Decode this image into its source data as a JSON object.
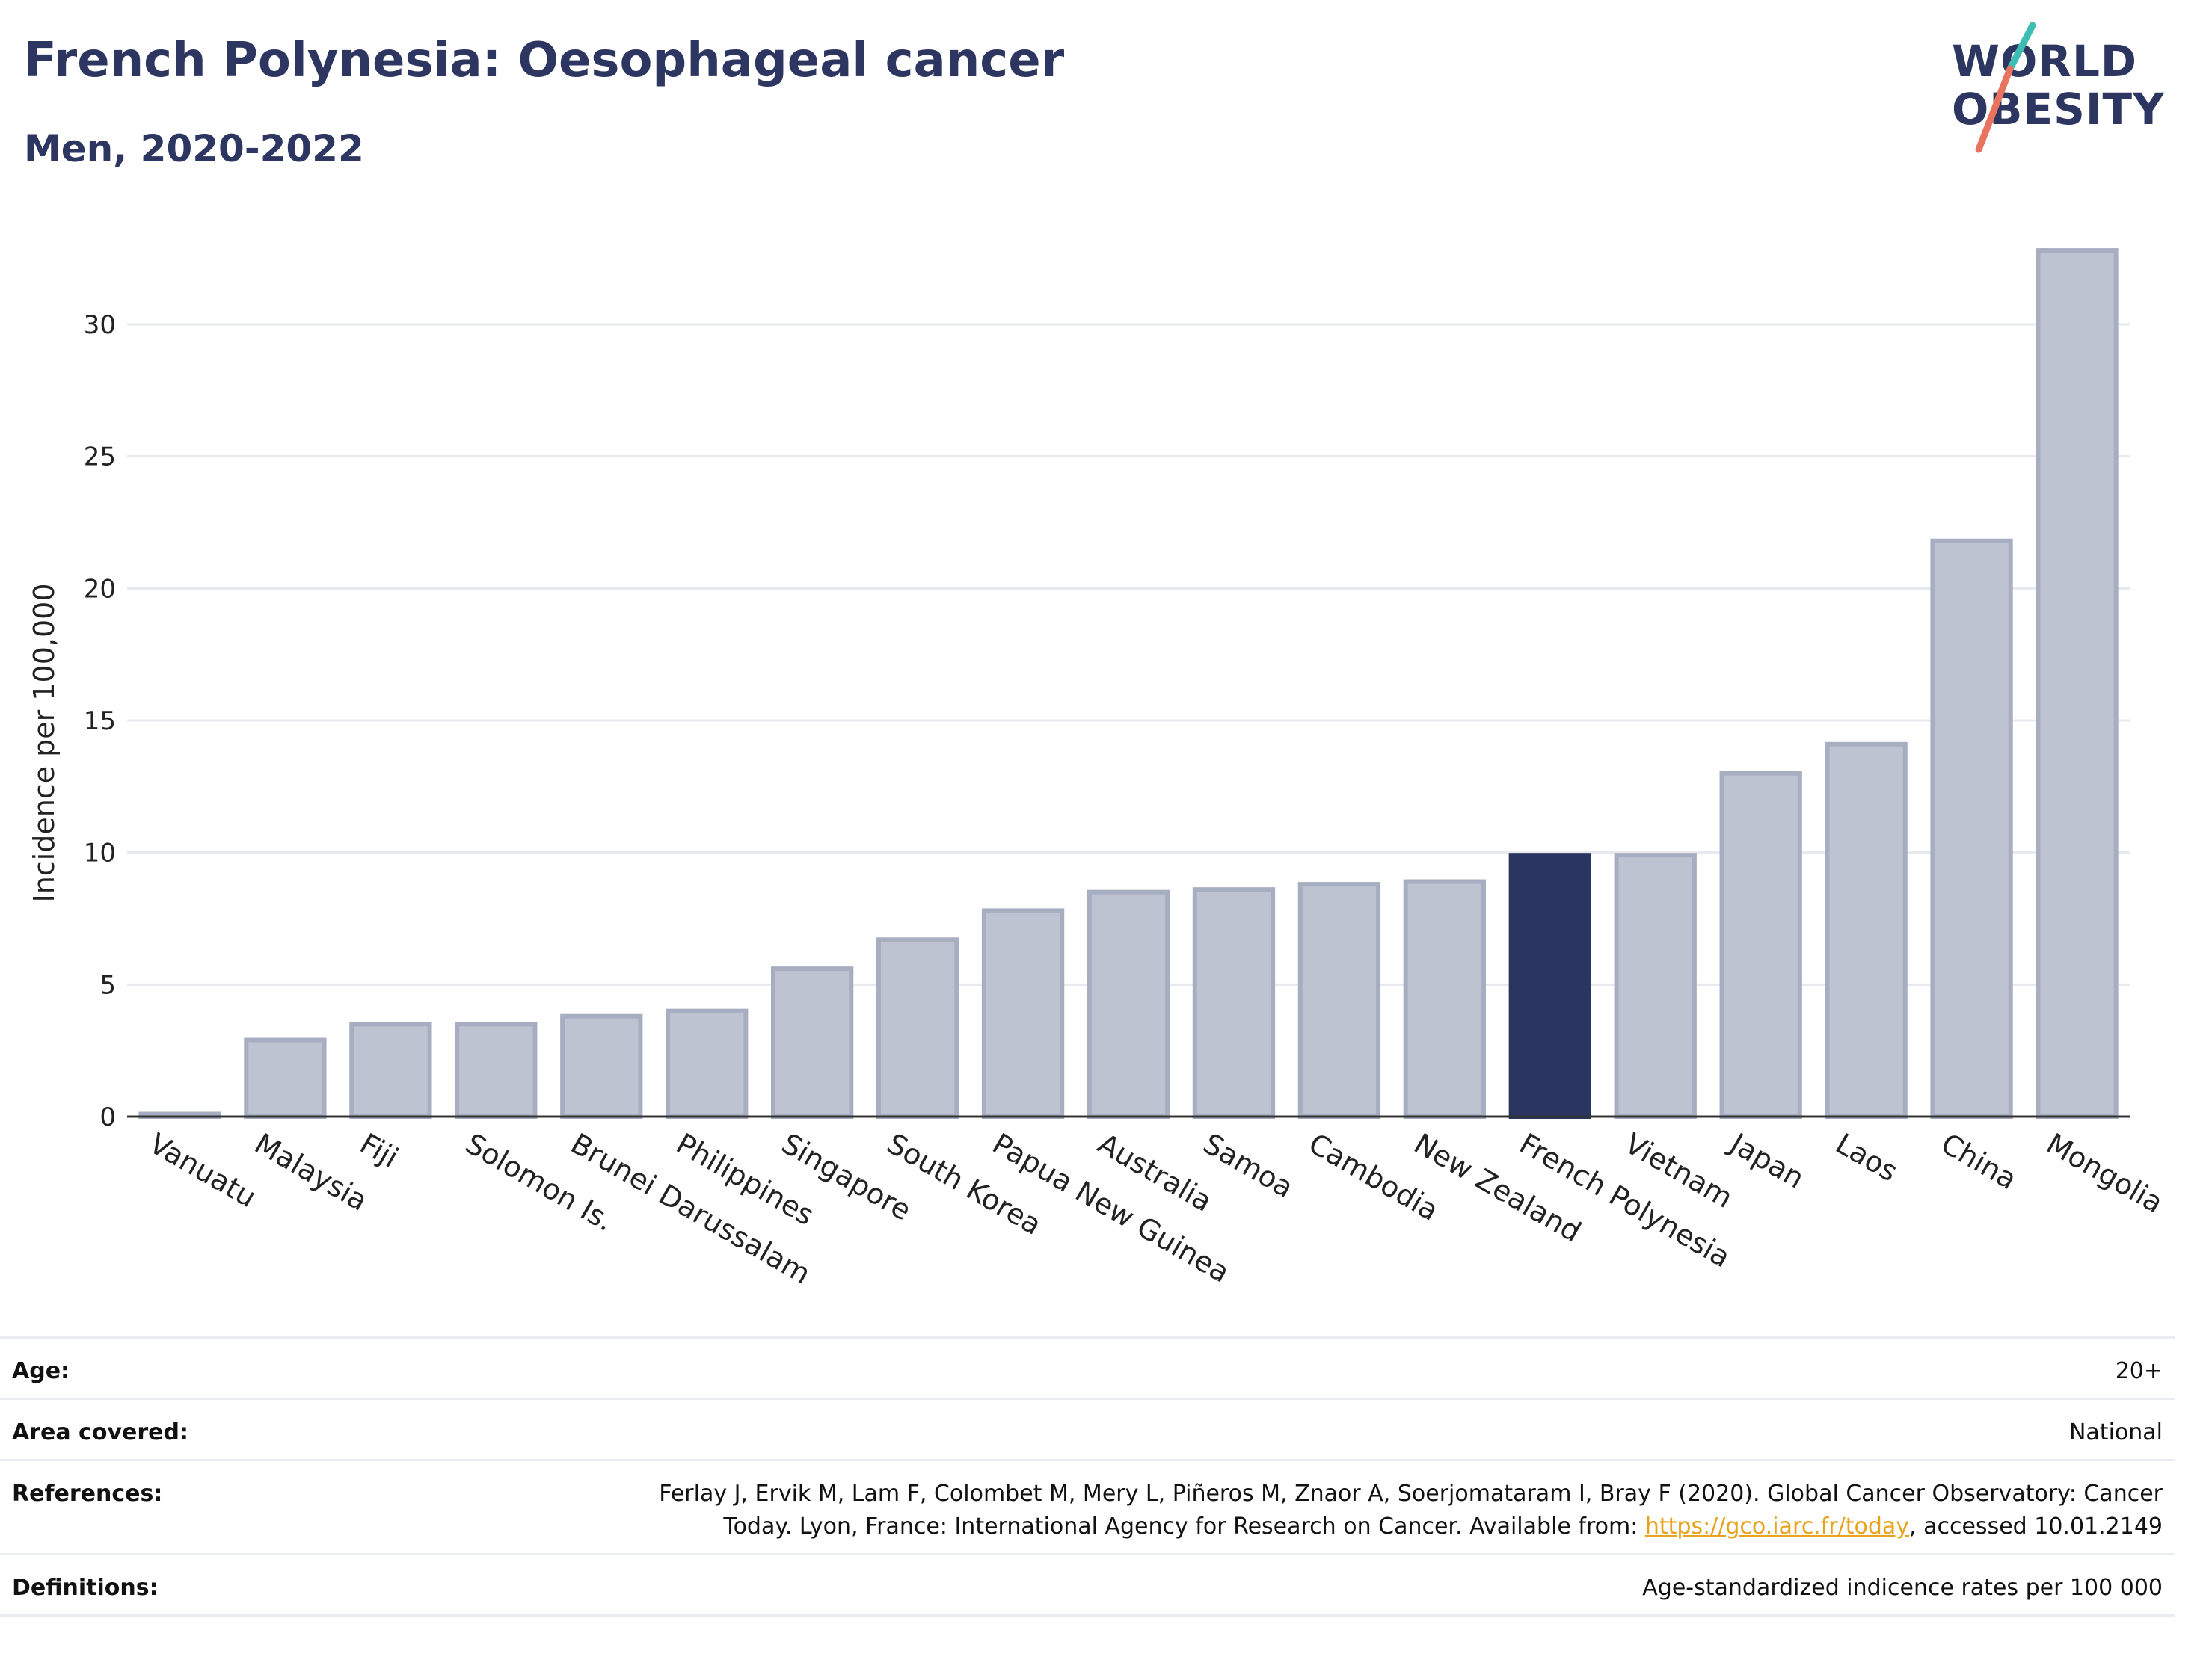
{
  "header": {
    "title": "French Polynesia: Oesophageal cancer",
    "subtitle": "Men, 2020-2022"
  },
  "logo": {
    "line1": "WORLD",
    "line2": "OBESITY",
    "accent_teal": "#3dbdb4",
    "accent_coral": "#e8735f"
  },
  "colors": {
    "bar_default": "#bec3d2",
    "bar_default_border": "#a8aec2",
    "bar_highlight": "#2a3561",
    "title": "#2d3561",
    "link": "#e8a21c"
  },
  "chart_data": {
    "type": "bar",
    "ylabel": "Incidence per 100,000",
    "ylim": [
      0,
      35
    ],
    "yticks": [
      0,
      5,
      10,
      15,
      20,
      25,
      30
    ],
    "grid": true,
    "highlight": "French Polynesia",
    "categories": [
      "Vanuatu",
      "Malaysia",
      "Fiji",
      "Solomon Is.",
      "Brunei Darussalam",
      "Philippines",
      "Singapore",
      "South Korea",
      "Papua New Guinea",
      "Australia",
      "Samoa",
      "Cambodia",
      "New Zealand",
      "French Polynesia",
      "Vietnam",
      "Japan",
      "Laos",
      "China",
      "Mongolia"
    ],
    "values": [
      0.1,
      2.9,
      3.5,
      3.5,
      3.8,
      4.0,
      5.6,
      6.7,
      7.8,
      8.5,
      8.6,
      8.8,
      8.9,
      9.9,
      9.9,
      13.0,
      14.1,
      21.8,
      32.8
    ]
  },
  "meta": {
    "age_label": "Age:",
    "age_value": "20+",
    "area_label": "Area covered:",
    "area_value": "National",
    "references_label": "References:",
    "references_line1": "Ferlay J, Ervik M, Lam F, Colombet M, Mery L, Piñeros M, Znaor A, Soerjomataram I, Bray F (2020). Global Cancer Observatory: Cancer",
    "references_line2_pre": "Today. Lyon, France: International Agency for Research on Cancer. Available from: ",
    "references_link": "https://gco.iarc.fr/today",
    "references_line2_post": ", accessed 10.01.2149",
    "definitions_label": "Definitions:",
    "definitions_value": "Age-standardized indicence rates per 100 000"
  }
}
